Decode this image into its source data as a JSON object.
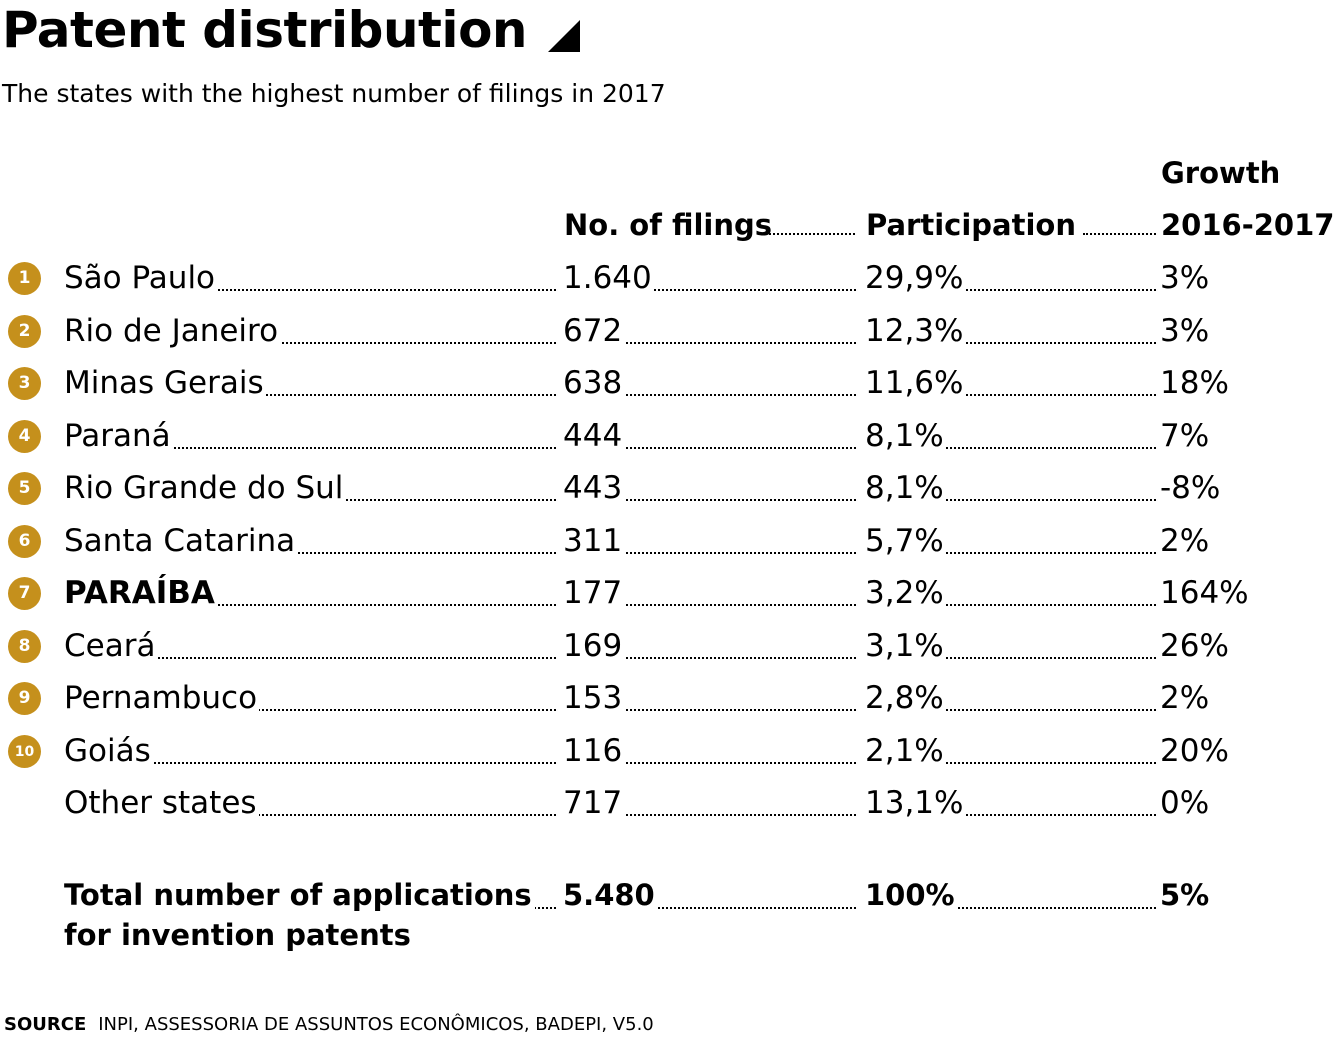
{
  "title": "Patent distribution",
  "subtitle": "The states with the highest number of filings in 2017",
  "accent_color": "#C5901C",
  "headers": {
    "filings": "No. of filings",
    "participation": "Participation",
    "growth_line1": "Growth",
    "growth_line2": "2016-2017"
  },
  "chart_data": {
    "type": "table",
    "columns": [
      "No. of filings",
      "Participation",
      "Growth 2016-2017"
    ],
    "rows": [
      {
        "rank": "1",
        "state": "São Paulo",
        "filings": "1.640",
        "participation": "29,9%",
        "growth": "3%"
      },
      {
        "rank": "2",
        "state": "Rio de Janeiro",
        "filings": "672",
        "participation": "12,3%",
        "growth": "3%"
      },
      {
        "rank": "3",
        "state": "Minas Gerais",
        "filings": "638",
        "participation": "11,6%",
        "growth": "18%"
      },
      {
        "rank": "4",
        "state": "Paraná",
        "filings": "444",
        "participation": "8,1%",
        "growth": "7%"
      },
      {
        "rank": "5",
        "state": "Rio Grande do Sul",
        "filings": "443",
        "participation": "8,1%",
        "growth": "-8%"
      },
      {
        "rank": "6",
        "state": "Santa Catarina",
        "filings": "311",
        "participation": "5,7%",
        "growth": "2%"
      },
      {
        "rank": "7",
        "state": "PARAÍBA",
        "filings": "177",
        "participation": "3,2%",
        "growth": "164%",
        "highlight": true
      },
      {
        "rank": "8",
        "state": "Ceará",
        "filings": "169",
        "participation": "3,1%",
        "growth": "26%"
      },
      {
        "rank": "9",
        "state": "Pernambuco",
        "filings": "153",
        "participation": "2,8%",
        "growth": "2%"
      },
      {
        "rank": "10",
        "state": "Goiás",
        "filings": "116",
        "participation": "2,1%",
        "growth": "20%"
      },
      {
        "rank": "",
        "state": "Other states",
        "filings": "717",
        "participation": "13,1%",
        "growth": "0%"
      }
    ],
    "total": {
      "label_line1": "Total number of applications",
      "label_line2": "for invention patents",
      "filings": "5.480",
      "participation": "100%",
      "growth": "5%"
    }
  },
  "source": {
    "label": "SOURCE",
    "text": "INPI, ASSESSORIA DE ASSUNTOS ECONÔMICOS, BADEPI, V5.0"
  }
}
